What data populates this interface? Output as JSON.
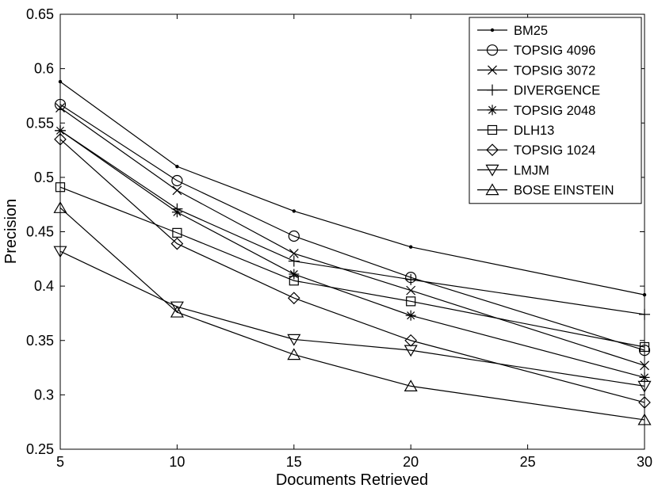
{
  "chart_data": {
    "type": "line",
    "title": "",
    "xlabel": "Documents Retrieved",
    "ylabel": "Precision",
    "x": [
      5,
      10,
      15,
      20,
      30
    ],
    "xlim": [
      5,
      30
    ],
    "ylim": [
      0.25,
      0.65
    ],
    "xticks": [
      "5",
      "10",
      "15",
      "20",
      "25",
      "30"
    ],
    "yticks": [
      "0.25",
      "0.3",
      "0.35",
      "0.4",
      "0.45",
      "0.5",
      "0.55",
      "0.6",
      "0.65"
    ],
    "grid": false,
    "legend_position": "top-right",
    "series": [
      {
        "name": "BM25",
        "marker": "dot",
        "values": [
          0.588,
          0.51,
          0.469,
          0.436,
          0.392
        ]
      },
      {
        "name": "TOPSIG 4096",
        "marker": "circle",
        "values": [
          0.567,
          0.497,
          0.446,
          0.408,
          0.341
        ]
      },
      {
        "name": "TOPSIG 3072",
        "marker": "x",
        "values": [
          0.564,
          0.488,
          0.43,
          0.396,
          0.327
        ]
      },
      {
        "name": "DIVERGENCE",
        "marker": "plus",
        "values": [
          0.543,
          0.471,
          0.423,
          0.406,
          0.374
        ]
      },
      {
        "name": "TOPSIG 2048",
        "marker": "star",
        "values": [
          0.543,
          0.468,
          0.411,
          0.373,
          0.316
        ]
      },
      {
        "name": "DLH13",
        "marker": "square",
        "values": [
          0.491,
          0.449,
          0.405,
          0.386,
          0.344
        ]
      },
      {
        "name": "TOPSIG 1024",
        "marker": "diamond",
        "values": [
          0.535,
          0.439,
          0.389,
          0.35,
          0.293
        ]
      },
      {
        "name": "LMJM",
        "marker": "triangle-down",
        "values": [
          0.432,
          0.381,
          0.351,
          0.341,
          0.308
        ]
      },
      {
        "name": "BOSE EINSTEIN",
        "marker": "triangle-up",
        "values": [
          0.472,
          0.376,
          0.337,
          0.308,
          0.277
        ]
      }
    ]
  }
}
